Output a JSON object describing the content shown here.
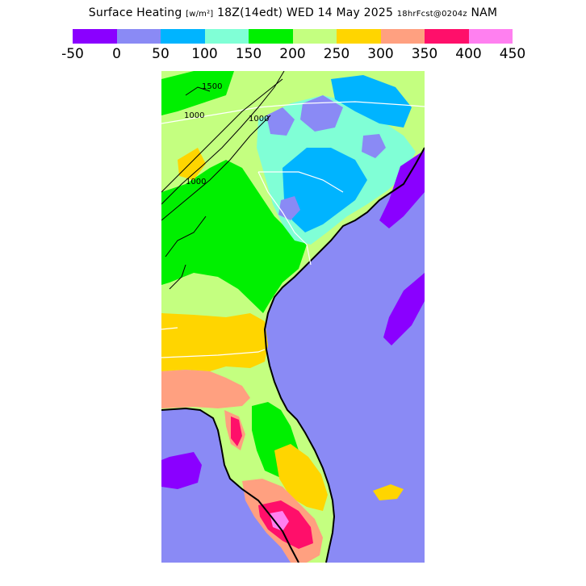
{
  "title": {
    "main": "Surface Heating",
    "unit": "[w/m²]",
    "time": "18Z(14edt) WED 14 May 2025",
    "forecast": "18hrFcst@0204z",
    "model": "NAM"
  },
  "legend": {
    "bins": [
      {
        "from": -50,
        "to": 0,
        "color": "#8a00ff"
      },
      {
        "from": 0,
        "to": 50,
        "color": "#8a8af5"
      },
      {
        "from": 50,
        "to": 100,
        "color": "#00b4ff"
      },
      {
        "from": 100,
        "to": 150,
        "color": "#80ffd6"
      },
      {
        "from": 150,
        "to": 200,
        "color": "#00f000"
      },
      {
        "from": 200,
        "to": 250,
        "color": "#c4ff80"
      },
      {
        "from": 250,
        "to": 300,
        "color": "#ffd500"
      },
      {
        "from": 300,
        "to": 350,
        "color": "#ffa080"
      },
      {
        "from": 350,
        "to": 400,
        "color": "#ff0f6a"
      },
      {
        "from": 400,
        "to": 450,
        "color": "#ff80f0"
      }
    ],
    "tick_labels": [
      "-50",
      "0",
      "50",
      "100",
      "150",
      "200",
      "250",
      "300",
      "350",
      "400",
      "450"
    ]
  },
  "map": {
    "contour_labels": [
      "1500",
      "1000",
      "1000",
      "1000"
    ]
  }
}
